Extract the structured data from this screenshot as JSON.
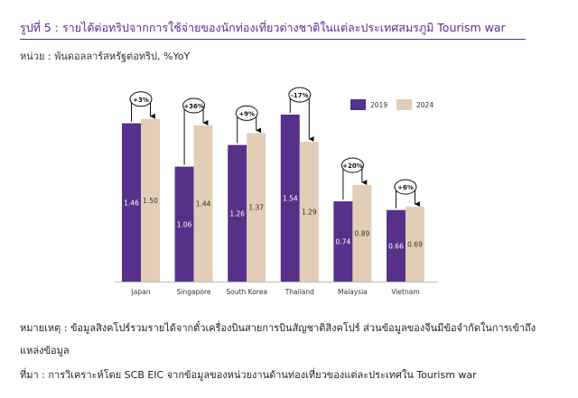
{
  "header": {
    "title": "รูปที่ 5 : รายได้ต่อทริปจากการใช้จ่ายของนักท่องเที่ยวต่างชาติในแต่ละประเทศสมรภูมิ Tourism war",
    "unit": "หน่วย : พันดอลลาร์สหรัฐต่อทริป, %YoY"
  },
  "notes": {
    "remark_line1": "หมายเหตุ : ข้อมูลสิงคโปร์รวมรายได้จากตั๋วเครื่องบินสายการบินสัญชาติสิงคโปร์ ส่วนข้อมูลของจีนมีข้อจำกัดในการเข้าถึง",
    "remark_line2": "แหล่งข้อมูล",
    "source": "ที่มา : การวิเคราะห์โดย SCB EIC จากข้อมูลของหน่วยงานด้านท่องเที่ยวของแต่ละประเทศใน Tourism war"
  },
  "colors": {
    "series_2019": "#55318a",
    "series_2024": "#e2cdb7",
    "title": "#5b2c91"
  },
  "chart_data": {
    "type": "bar",
    "categories": [
      "Japan",
      "Singapore",
      "South Korea",
      "Thailand",
      "Malaysia",
      "Vietnam"
    ],
    "series": [
      {
        "name": "2019",
        "values": [
          1.46,
          1.06,
          1.26,
          1.54,
          0.74,
          0.66
        ]
      },
      {
        "name": "2024",
        "values": [
          1.5,
          1.44,
          1.37,
          1.29,
          0.89,
          0.69
        ]
      }
    ],
    "value_labels": {
      "2019": [
        "1.46",
        "1.06",
        "1.26",
        "1.54",
        "0.74",
        "0.66"
      ],
      "2024": [
        "1.50",
        "1.44",
        "1.37",
        "1.29",
        "0.89",
        "0.69"
      ]
    },
    "changes": [
      "+3%",
      "+36%",
      "+9%",
      "-17%",
      "+20%",
      "+6%"
    ],
    "ylim": [
      0,
      1.54
    ],
    "legend_position": "top-right",
    "grid": false
  }
}
